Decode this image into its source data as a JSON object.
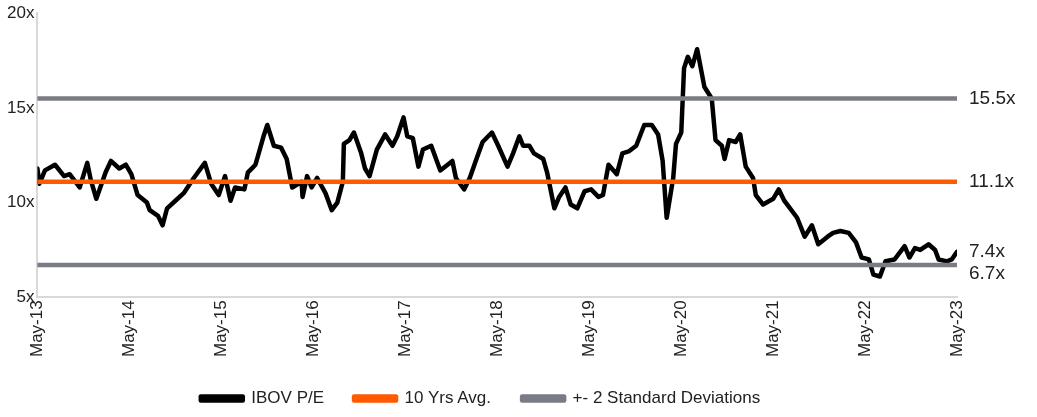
{
  "chart_data": {
    "type": "line",
    "xlim": [
      "2013-05-01",
      "2023-05-01"
    ],
    "xticks": [
      {
        "value": "2013-05-01",
        "label": "May-13"
      },
      {
        "value": "2014-05-01",
        "label": "May-14"
      },
      {
        "value": "2015-05-01",
        "label": "May-15"
      },
      {
        "value": "2016-05-01",
        "label": "May-16"
      },
      {
        "value": "2017-05-01",
        "label": "May-17"
      },
      {
        "value": "2018-05-01",
        "label": "May-18"
      },
      {
        "value": "2019-05-01",
        "label": "May-19"
      },
      {
        "value": "2020-05-01",
        "label": "May-20"
      },
      {
        "value": "2021-05-01",
        "label": "May-21"
      },
      {
        "value": "2022-05-01",
        "label": "May-22"
      },
      {
        "value": "2023-05-01",
        "label": "May-23"
      }
    ],
    "ylim": [
      5,
      20
    ],
    "yticks": [
      {
        "value": 5,
        "label": "5x"
      },
      {
        "value": 10,
        "label": "10x"
      },
      {
        "value": 15,
        "label": "15x"
      },
      {
        "value": 20,
        "label": "20x"
      }
    ],
    "grid": false,
    "legend": "bottom",
    "marker": "none",
    "line_style": "solid",
    "series": [
      {
        "name": "IBOV P/E",
        "color": "#000000",
        "x": [
          "2013-05-01",
          "2013-05-09",
          "2013-05-31",
          "2013-07-10",
          "2013-08-15",
          "2013-09-06",
          "2013-10-16",
          "2013-11-15",
          "2013-11-29",
          "2013-12-21",
          "2014-01-27",
          "2014-02-17",
          "2014-03-22",
          "2014-04-17",
          "2014-05-09",
          "2014-06-03",
          "2014-07-10",
          "2014-07-21",
          "2014-08-23",
          "2014-09-10",
          "2014-09-28",
          "2014-10-31",
          "2014-12-03",
          "2015-01-12",
          "2015-02-25",
          "2015-03-22",
          "2015-04-21",
          "2015-05-16",
          "2015-06-07",
          "2015-06-25",
          "2015-08-01",
          "2015-08-15",
          "2015-09-14",
          "2015-10-16",
          "2015-10-31",
          "2015-11-26",
          "2015-12-25",
          "2016-01-16",
          "2016-02-07",
          "2016-03-15",
          "2016-03-19",
          "2016-04-06",
          "2016-04-24",
          "2016-05-16",
          "2016-06-18",
          "2016-07-13",
          "2016-08-04",
          "2016-08-26",
          "2016-08-30",
          "2016-09-21",
          "2016-10-09",
          "2016-11-07",
          "2016-11-22",
          "2016-12-10",
          "2017-01-08",
          "2017-02-10",
          "2017-03-11",
          "2017-03-30",
          "2017-04-24",
          "2017-05-09",
          "2017-05-31",
          "2017-06-22",
          "2017-07-10",
          "2017-08-12",
          "2017-09-17",
          "2017-11-04",
          "2017-11-18",
          "2017-12-21",
          "2018-01-12",
          "2018-02-10",
          "2018-03-04",
          "2018-04-10",
          "2018-05-05",
          "2018-06-11",
          "2018-07-03",
          "2018-07-28",
          "2018-08-12",
          "2018-09-06",
          "2018-09-24",
          "2018-10-31",
          "2018-11-15",
          "2018-12-14",
          "2019-01-02",
          "2019-01-27",
          "2019-02-17",
          "2019-03-15",
          "2019-04-13",
          "2019-05-09",
          "2019-06-07",
          "2019-06-25",
          "2019-07-17",
          "2019-08-19",
          "2019-09-10",
          "2019-10-05",
          "2019-11-04",
          "2019-12-06",
          "2020-01-05",
          "2020-01-30",
          "2020-02-17",
          "2020-03-04",
          "2020-03-30",
          "2020-04-10",
          "2020-05-01",
          "2020-05-12",
          "2020-05-27",
          "2020-06-14",
          "2020-07-03",
          "2020-08-01",
          "2020-08-30",
          "2020-09-14",
          "2020-10-09",
          "2020-10-20",
          "2020-11-07",
          "2020-12-03",
          "2020-12-21",
          "2021-01-12",
          "2021-02-10",
          "2021-02-21",
          "2021-03-22",
          "2021-05-01",
          "2021-05-23",
          "2021-06-14",
          "2021-08-04",
          "2021-09-03",
          "2021-10-02",
          "2021-10-27",
          "2021-12-03",
          "2021-12-25",
          "2022-01-23",
          "2022-02-25",
          "2022-03-26",
          "2022-04-17",
          "2022-05-16",
          "2022-06-03",
          "2022-06-29",
          "2022-07-21",
          "2022-08-26",
          "2022-10-05",
          "2022-10-24",
          "2022-11-15",
          "2022-12-06",
          "2023-01-08",
          "2023-02-03",
          "2023-02-17",
          "2023-03-22",
          "2023-04-10",
          "2023-05-01"
        ],
        "values": [
          11.8,
          11.0,
          11.7,
          12.0,
          11.4,
          11.5,
          10.8,
          12.1,
          11.2,
          10.2,
          11.6,
          12.2,
          11.8,
          12.0,
          11.5,
          10.4,
          10.0,
          9.6,
          9.3,
          8.8,
          9.7,
          10.1,
          10.5,
          11.3,
          12.1,
          11.0,
          10.4,
          11.4,
          10.1,
          10.8,
          10.7,
          11.6,
          12.0,
          13.5,
          14.1,
          13.0,
          12.9,
          12.3,
          10.8,
          11.1,
          10.3,
          11.4,
          10.8,
          11.3,
          10.5,
          9.6,
          10.0,
          11.1,
          13.1,
          13.3,
          13.7,
          12.6,
          11.8,
          11.4,
          12.8,
          13.6,
          13.0,
          13.5,
          14.5,
          13.5,
          13.4,
          11.9,
          12.8,
          13.0,
          11.7,
          12.2,
          11.3,
          10.7,
          11.3,
          12.4,
          13.2,
          13.7,
          13.0,
          11.9,
          12.6,
          13.5,
          13.0,
          13.0,
          12.6,
          12.3,
          11.6,
          9.7,
          10.3,
          10.8,
          9.9,
          9.7,
          10.6,
          10.7,
          10.3,
          10.4,
          12.0,
          11.5,
          12.6,
          12.7,
          13.0,
          14.1,
          14.1,
          13.6,
          12.2,
          9.2,
          11.3,
          13.1,
          13.7,
          17.1,
          17.7,
          17.2,
          18.1,
          16.1,
          15.5,
          13.3,
          13.0,
          12.3,
          13.3,
          13.2,
          13.6,
          11.9,
          11.3,
          10.4,
          9.9,
          10.2,
          10.7,
          10.1,
          9.2,
          8.2,
          8.8,
          7.8,
          8.2,
          8.4,
          8.5,
          8.4,
          7.9,
          7.1,
          7.0,
          6.2,
          6.1,
          6.9,
          7.0,
          7.7,
          7.1,
          7.6,
          7.5,
          7.8,
          7.5,
          7.0,
          6.9,
          7.0,
          7.4
        ]
      },
      {
        "name": "10 Yrs Avg.",
        "color": "#ff5a00",
        "x": [
          "2013-05-01",
          "2023-05-01"
        ],
        "values": [
          11.1,
          11.1
        ]
      },
      {
        "name": "+- 2 Standard Deviations",
        "color": "#7a7c85",
        "x": [
          "2013-05-01",
          "2023-05-01"
        ],
        "values": [
          15.5,
          15.5
        ]
      },
      {
        "color": "#7a7c85",
        "x": [
          "2013-05-01",
          "2023-05-01"
        ],
        "values": [
          6.7,
          6.7
        ]
      }
    ],
    "annotations": [
      {
        "text": "15.5x",
        "x": "2023-05-01",
        "y": 15.5
      },
      {
        "text": "11.1x",
        "x": "2023-05-01",
        "y": 11.1
      },
      {
        "text": "7.4x",
        "x": "2023-05-01",
        "y": 7.4
      },
      {
        "text": "6.7x",
        "x": "2023-05-01",
        "y": 6.7
      }
    ]
  }
}
